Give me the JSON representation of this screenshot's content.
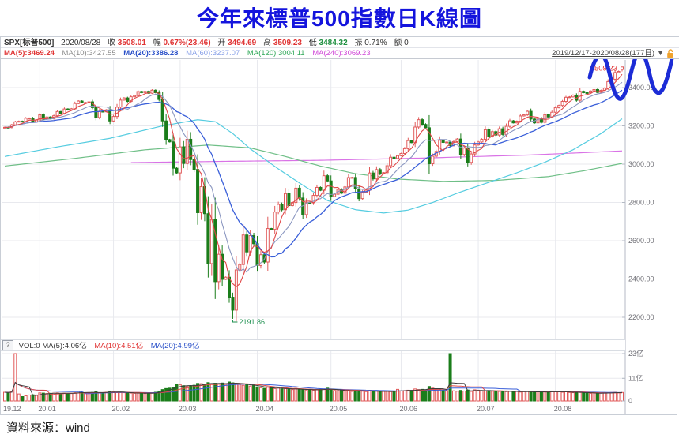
{
  "title": "今年來標普500指數日K線圖",
  "source": "資料來源：wind",
  "info_bar": {
    "symbol": "SPX[标普500]",
    "date": "2020/08/28",
    "fields": [
      {
        "label": "收",
        "value": "3508.01",
        "color": "#e03434"
      },
      {
        "label": "幅",
        "value": "0.67%(23.46)",
        "color": "#e03434"
      },
      {
        "label": "开",
        "value": "3494.69",
        "color": "#e03434"
      },
      {
        "label": "高",
        "value": "3509.23",
        "color": "#e03434"
      },
      {
        "label": "低",
        "value": "3484.32",
        "color": "#1d8f3f"
      },
      {
        "label": "振",
        "value": "0.71%",
        "color": "#333333"
      },
      {
        "label": "额",
        "value": "0",
        "color": "#333333"
      }
    ],
    "range_label": "2019/12/17-2020/08/28(177日)",
    "filter_icon": "▼",
    "lock_color": "#f0a22c"
  },
  "ma_legend": [
    {
      "label": "MA(5):3469.24",
      "color": "#e03434"
    },
    {
      "label": "MA(10):3427.55",
      "color": "#8a8a8a"
    },
    {
      "label": "MA(20):3386.28",
      "color": "#2a50c8"
    },
    {
      "label": "MA(60):3237.07",
      "color": "#8aa2e8"
    },
    {
      "label": "MA(120):3004.11",
      "color": "#2fa858"
    },
    {
      "label": "MA(240):3069.23",
      "color": "#d048d8"
    }
  ],
  "vol_legend": {
    "help": "?",
    "items": [
      {
        "label": "VOL:0 MA(5):4.06亿",
        "color": "#333333"
      },
      {
        "label": "MA(10):4.51亿",
        "color": "#e03434"
      },
      {
        "label": "MA(20):4.99亿",
        "color": "#2a50c8"
      }
    ]
  },
  "chart_data": {
    "type": "candlestick+volume",
    "range": "2019/12/17-2020/08/28",
    "n_days": 177,
    "price_labels": [
      "3400.00",
      "3200.00",
      "3000.00",
      "2800.00",
      "2600.00",
      "2400.00",
      "2200.00"
    ],
    "vol_labels": [
      "23亿",
      "11亿",
      "0"
    ],
    "month_ticks": [
      [
        "19.12",
        0
      ],
      [
        "20.01",
        10
      ],
      [
        "20.02",
        31
      ],
      [
        "20.03",
        50
      ],
      [
        "20.04",
        72
      ],
      [
        "20.05",
        93
      ],
      [
        "20.06",
        113
      ],
      [
        "20.07",
        135
      ],
      [
        "20.08",
        157
      ]
    ],
    "closes": [
      3192.52,
      3191.14,
      3205.37,
      3221.22,
      3224.01,
      3223.38,
      3239.91,
      3240.02,
      3221.29,
      3230.78,
      3257.85,
      3234.85,
      3246.28,
      3237.18,
      3253.05,
      3274.7,
      3265.35,
      3288.13,
      3283.15,
      3289.29,
      3316.81,
      3329.62,
      3320.79,
      3321.75,
      3325.54,
      3295.47,
      3243.63,
      3276.24,
      3273.4,
      3283.66,
      3225.52,
      3248.92,
      3297.59,
      3334.69,
      3345.78,
      3327.71,
      3352.09,
      3357.75,
      3379.45,
      3373.94,
      3380.16,
      3370.29,
      3386.15,
      3373.23,
      3337.75,
      3225.89,
      3128.21,
      3116.39,
      2978.76,
      2954.22,
      3090.23,
      3003.37,
      3130.12,
      3023.94,
      2972.37,
      2746.56,
      2882.23,
      2741.38,
      2480.64,
      2711.02,
      2386.13,
      2529.19,
      2398.1,
      2409.39,
      2304.92,
      2237.4,
      2447.33,
      2475.56,
      2630.07,
      2541.47,
      2626.65,
      2584.59,
      2470.5,
      2526.9,
      2488.65,
      2663.68,
      2659.41,
      2749.98,
      2789.82,
      2761.63,
      2846.06,
      2783.36,
      2799.55,
      2874.56,
      2823.16,
      2736.56,
      2799.31,
      2797.8,
      2836.74,
      2878.48,
      2863.39,
      2939.51,
      2912.43,
      2830.71,
      2842.74,
      2868.44,
      2848.42,
      2881.19,
      2929.8,
      2930.32,
      2870.12,
      2820.0,
      2852.5,
      2863.7,
      2953.91,
      2922.94,
      2971.61,
      2948.51,
      2955.45,
      2991.77,
      3036.13,
      3029.73,
      3044.31,
      3055.73,
      3080.82,
      3122.87,
      3112.35,
      3193.93,
      3232.39,
      3207.18,
      3190.14,
      3002.1,
      3041.31,
      3066.59,
      3124.74,
      3113.49,
      3115.34,
      3097.74,
      3117.86,
      3131.29,
      3050.33,
      3083.76,
      3009.05,
      3053.24,
      3100.29,
      3115.86,
      3130.01,
      3179.72,
      3145.32,
      3169.94,
      3152.05,
      3185.04,
      3155.22,
      3197.52,
      3226.56,
      3215.57,
      3224.73,
      3251.84,
      3257.3,
      3276.02,
      3235.66,
      3215.63,
      3239.41,
      3218.44,
      3258.44,
      3246.22,
      3271.12,
      3294.61,
      3306.51,
      3327.77,
      3349.16,
      3351.28,
      3360.47,
      3333.69,
      3380.35,
      3373.43,
      3372.85,
      3381.99,
      3389.78,
      3374.85,
      3385.51,
      3397.16,
      3431.28,
      3443.62,
      3478.73,
      3484.55,
      3508.01
    ],
    "volumes": [
      4.2,
      4.0,
      4.6,
      23.0,
      3.4,
      2.1,
      2.5,
      2.9,
      3.0,
      2.9,
      3.9,
      3.8,
      3.6,
      3.7,
      3.8,
      3.9,
      3.6,
      3.8,
      3.7,
      3.6,
      4.0,
      4.6,
      4.2,
      3.9,
      3.8,
      4.1,
      4.5,
      4.0,
      3.9,
      4.2,
      4.8,
      4.4,
      4.3,
      4.1,
      4.0,
      3.9,
      3.8,
      3.7,
      3.8,
      3.7,
      3.6,
      3.9,
      3.8,
      4.2,
      4.8,
      5.5,
      6.0,
      6.2,
      6.7,
      8.0,
      7.8,
      7.4,
      7.0,
      7.2,
      7.6,
      8.5,
      8.4,
      8.2,
      8.9,
      8.4,
      8.6,
      8.3,
      8.7,
      8.0,
      9.2,
      8.8,
      8.4,
      8.0,
      7.6,
      7.9,
      7.2,
      7.8,
      6.8,
      6.4,
      6.1,
      6.6,
      6.2,
      6.0,
      6.3,
      5.8,
      6.0,
      5.7,
      5.5,
      6.1,
      5.4,
      5.6,
      5.3,
      5.5,
      5.2,
      5.4,
      5.6,
      5.8,
      6.2,
      5.4,
      5.0,
      4.9,
      5.1,
      4.8,
      5.0,
      4.6,
      4.9,
      5.2,
      4.7,
      4.5,
      4.9,
      4.6,
      4.8,
      4.4,
      4.6,
      4.8,
      4.5,
      4.7,
      5.6,
      4.8,
      5.0,
      5.2,
      5.1,
      5.8,
      5.5,
      5.6,
      5.4,
      7.0,
      6.2,
      5.6,
      5.4,
      5.2,
      5.0,
      23.0,
      4.9,
      4.7,
      5.1,
      4.8,
      5.3,
      4.6,
      5.4,
      5.2,
      4.9,
      4.8,
      5.0,
      4.7,
      4.8,
      4.6,
      4.7,
      4.5,
      4.7,
      4.4,
      4.6,
      4.3,
      4.5,
      4.7,
      4.4,
      4.2,
      4.5,
      4.3,
      4.4,
      4.2,
      4.8,
      4.6,
      4.4,
      4.2,
      4.5,
      4.1,
      4.0,
      4.3,
      4.1,
      3.9,
      3.8,
      3.7,
      3.9,
      3.6,
      3.8,
      4.0,
      3.9,
      4.1,
      4.2,
      4.0,
      4.1
    ],
    "prev_close_before_start": 3191.45,
    "last_day": {
      "open": 3494.69,
      "high": 3509.23,
      "low": 3484.32,
      "close": 3508.01
    },
    "low_annotation": {
      "index": 65,
      "value": 2191.86,
      "label": "2191.86",
      "color": "#1d8f4f"
    },
    "high_annotation": {
      "label": "3509.23",
      "color": "#e03434"
    },
    "ma_control_points": {
      "ma60": [
        [
          0,
          3040
        ],
        [
          15,
          3090
        ],
        [
          30,
          3135
        ],
        [
          45,
          3200
        ],
        [
          55,
          3232
        ],
        [
          60,
          3222
        ],
        [
          65,
          3160
        ],
        [
          70,
          3080
        ],
        [
          78,
          2975
        ],
        [
          85,
          2890
        ],
        [
          92,
          2810
        ],
        [
          100,
          2762
        ],
        [
          108,
          2745
        ],
        [
          115,
          2760
        ],
        [
          122,
          2800
        ],
        [
          130,
          2855
        ],
        [
          138,
          2905
        ],
        [
          146,
          2955
        ],
        [
          154,
          3010
        ],
        [
          162,
          3075
        ],
        [
          170,
          3160
        ],
        [
          176,
          3237
        ]
      ],
      "ma120": [
        [
          0,
          2990
        ],
        [
          20,
          3030
        ],
        [
          40,
          3075
        ],
        [
          58,
          3100
        ],
        [
          70,
          3085
        ],
        [
          80,
          3040
        ],
        [
          90,
          2990
        ],
        [
          100,
          2950
        ],
        [
          112,
          2922
        ],
        [
          125,
          2910
        ],
        [
          140,
          2915
        ],
        [
          155,
          2935
        ],
        [
          165,
          2965
        ],
        [
          176,
          3004
        ]
      ],
      "ma240": [
        [
          36,
          3008
        ],
        [
          60,
          3014
        ],
        [
          90,
          3020
        ],
        [
          120,
          3032
        ],
        [
          150,
          3048
        ],
        [
          176,
          3069
        ]
      ]
    },
    "colors": {
      "up": "#e15a5a",
      "down": "#1a7d1a",
      "ma5": "#e04848",
      "ma10": "#8a96c0",
      "ma20": "#3a5fd9",
      "ma60": "#55cce0",
      "ma120": "#6fbf87",
      "ma240": "#d973e6",
      "volma5": "#3c3c3c",
      "volma10": "#e04848",
      "volma20": "#3a5fd9",
      "grid": "#e8e9ee",
      "axis": "#b4bac4",
      "label": "#6f6f76",
      "arrow": "#1c2cd6"
    }
  }
}
